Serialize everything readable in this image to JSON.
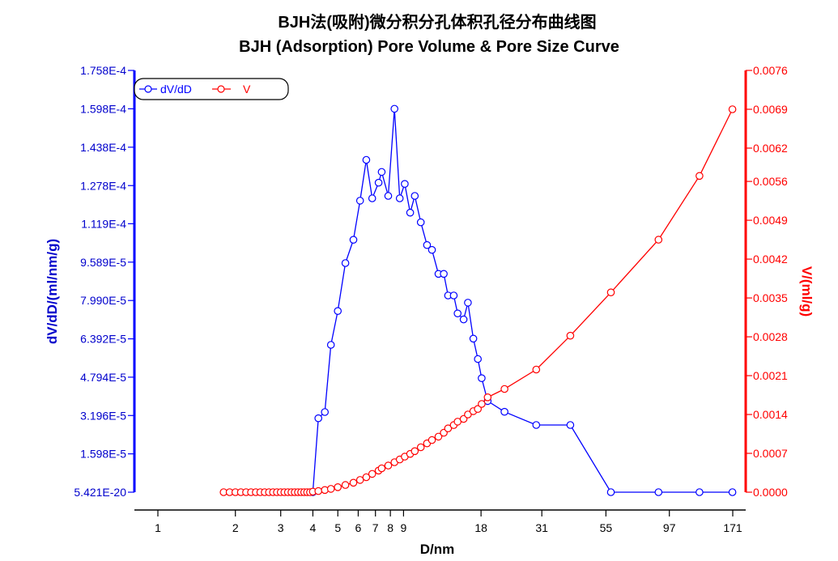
{
  "chart_data": {
    "type": "line",
    "title": "BJH法(吸附)微分积分孔体积孔径分布曲线图",
    "subtitle": "BJH (Adsorption) Pore Volume & Pore Size Curve",
    "xlabel": "D/nm",
    "ylabel_left": "dV/dD/(ml/nm/g)",
    "ylabel_right": "V/(ml/g)",
    "x_scale": "log",
    "x_ticks": [
      1,
      2,
      3,
      4,
      5,
      6,
      7,
      8,
      9,
      18,
      31,
      55,
      97,
      171
    ],
    "x_tick_labels": [
      "1",
      "2",
      "3",
      "4",
      "5",
      "6",
      "7",
      "8",
      "9",
      "18",
      "31",
      "55",
      "97",
      "171"
    ],
    "y_left_ticks": [
      0,
      1.598e-05,
      3.196e-05,
      4.794e-05,
      6.392e-05,
      7.99e-05,
      9.589e-05,
      0.0001119,
      0.0001278,
      0.0001438,
      0.0001598,
      0.0001758
    ],
    "y_left_tick_labels": [
      "5.421E-20",
      "1.598E-5",
      "3.196E-5",
      "4.794E-5",
      "6.392E-5",
      "7.990E-5",
      "9.589E-5",
      "1.119E-4",
      "1.278E-4",
      "1.438E-4",
      "1.598E-4",
      "1.758E-4"
    ],
    "y_left_range": [
      0,
      0.0001758
    ],
    "y_right_ticks": [
      0,
      0.0007,
      0.0014,
      0.0021,
      0.0028,
      0.0035,
      0.0042,
      0.0049,
      0.0056,
      0.0062,
      0.0069,
      0.0076
    ],
    "y_right_tick_labels": [
      "0.0000",
      "0.0007",
      "0.0014",
      "0.0021",
      "0.0028",
      "0.0035",
      "0.0042",
      "0.0049",
      "0.0056",
      "0.0062",
      "0.0069",
      "0.0076"
    ],
    "y_right_range": [
      0,
      0.0076
    ],
    "legend_position": "top-left",
    "series": [
      {
        "name": "dV/dD",
        "axis": "left",
        "color": "#0000ff",
        "x": [
          1.8,
          1.9,
          2.0,
          2.1,
          2.2,
          2.3,
          2.4,
          2.5,
          2.6,
          2.7,
          2.8,
          2.9,
          3.0,
          3.1,
          3.2,
          3.3,
          3.4,
          3.5,
          3.6,
          3.7,
          3.8,
          3.9,
          4.0,
          4.2,
          4.45,
          4.7,
          5.0,
          5.35,
          5.75,
          6.1,
          6.45,
          6.8,
          7.2,
          7.4,
          7.85,
          8.3,
          8.7,
          9.1,
          9.55,
          9.95,
          10.5,
          11.1,
          11.6,
          12.3,
          12.9,
          13.4,
          14.1,
          14.6,
          15.4,
          16.0,
          16.8,
          17.5,
          18.1,
          19.1,
          22.2,
          29.5,
          40.0,
          57.5,
          88.0,
          127.0,
          170.5
        ],
        "y": [
          0,
          0,
          0,
          0,
          0,
          0,
          0,
          0,
          0,
          0,
          0,
          0,
          0,
          0,
          0,
          0,
          0,
          0,
          0,
          0,
          0,
          0,
          0,
          3.08e-05,
          3.34e-05,
          6.14e-05,
          7.55e-05,
          9.55e-05,
          0.0001052,
          0.0001215,
          0.0001385,
          0.0001225,
          0.000129,
          0.0001335,
          0.0001235,
          0.0001598,
          0.0001225,
          0.0001285,
          0.0001165,
          0.0001235,
          0.0001125,
          0.000103,
          0.000101,
          9.1e-05,
          9.1e-05,
          8.2e-05,
          8.2e-05,
          7.45e-05,
          7.2e-05,
          7.9e-05,
          6.4e-05,
          5.55e-05,
          4.75e-05,
          3.8e-05,
          3.35e-05,
          2.8e-05,
          2.8e-05,
          0,
          0,
          0,
          0
        ]
      },
      {
        "name": "V",
        "axis": "right",
        "color": "#ff0000",
        "x": [
          1.8,
          1.9,
          2.0,
          2.1,
          2.2,
          2.3,
          2.4,
          2.5,
          2.6,
          2.7,
          2.8,
          2.9,
          3.0,
          3.1,
          3.2,
          3.3,
          3.4,
          3.5,
          3.6,
          3.7,
          3.8,
          3.9,
          4.0,
          4.2,
          4.45,
          4.7,
          5.0,
          5.35,
          5.75,
          6.1,
          6.45,
          6.8,
          7.2,
          7.4,
          7.85,
          8.3,
          8.7,
          9.1,
          9.55,
          9.95,
          10.5,
          11.1,
          11.6,
          12.3,
          12.9,
          13.4,
          14.1,
          14.6,
          15.4,
          16.0,
          16.8,
          17.5,
          18.1,
          19.1,
          22.2,
          29.5,
          40.0,
          57.5,
          88.0,
          127.0,
          170.5
        ],
        "y": [
          0,
          0,
          0,
          0,
          0,
          0,
          0,
          0,
          0,
          0,
          0,
          0,
          0,
          0,
          0,
          0,
          0,
          0,
          0,
          0,
          0,
          0,
          1e-05,
          2e-05,
          4e-05,
          6e-05,
          9e-05,
          0.00013,
          0.00017,
          0.00022,
          0.00027,
          0.00033,
          0.00039,
          0.00043,
          0.00048,
          0.00054,
          0.00059,
          0.00064,
          0.00069,
          0.00074,
          0.00081,
          0.00088,
          0.00094,
          0.001,
          0.00107,
          0.00115,
          0.00121,
          0.00127,
          0.00132,
          0.0014,
          0.00146,
          0.0015,
          0.00159,
          0.00171,
          0.00186,
          0.00221,
          0.00282,
          0.0036,
          0.00455,
          0.0057,
          0.0069
        ]
      }
    ]
  }
}
